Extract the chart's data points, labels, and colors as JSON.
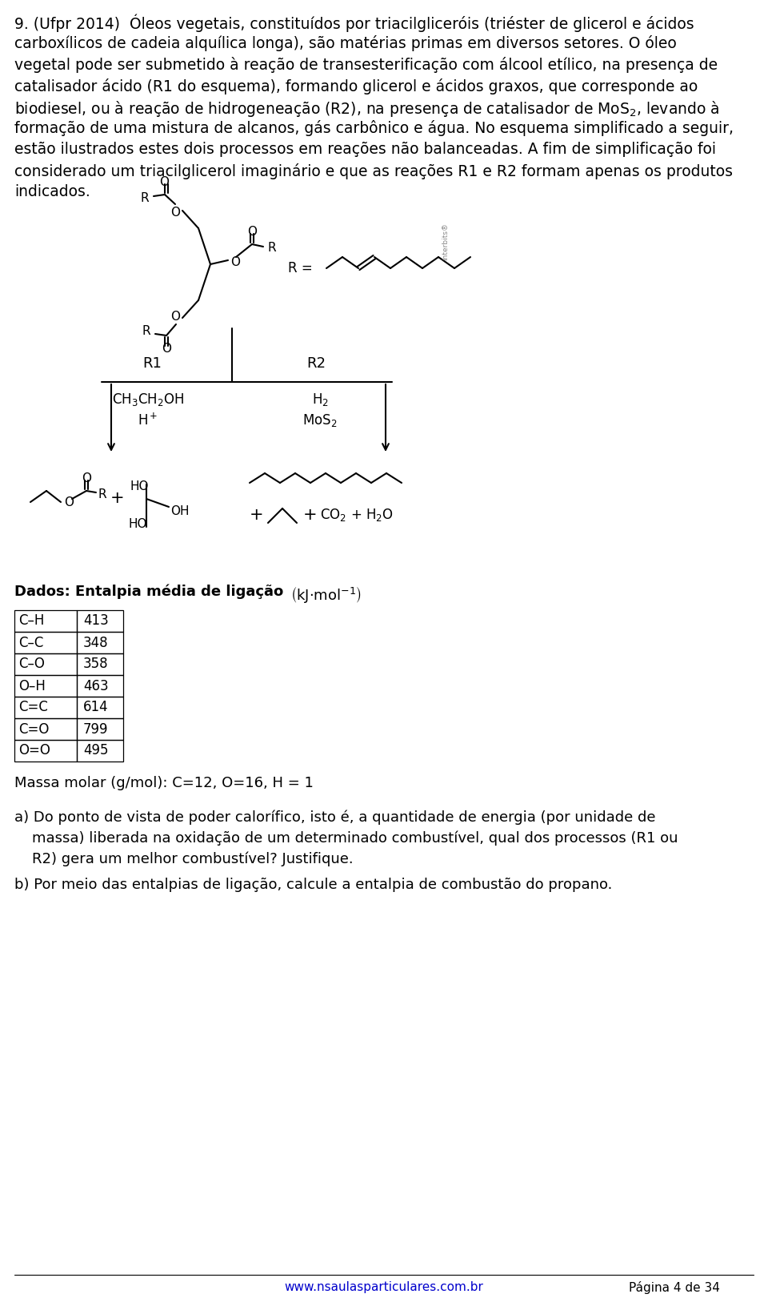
{
  "bg_color": "#ffffff",
  "text_color": "#000000",
  "page_width": 9.6,
  "page_height": 16.21,
  "paragraph_lines": [
    "9. (Ufpr 2014)  Óleos vegetais, constituídos por triacilgliceróis (triéster de glicerol e ácidos",
    "carboxílicos de cadeia alquílica longa), são matérias primas em diversos setores. O óleo",
    "vegetal pode ser submetido à reação de transesterificação com álcool etílico, na presença de",
    "catalisador ácido (R1 do esquema), formando glicerol e ácidos graxos, que corresponde ao",
    "biodiesel, ou à reação de hidrogeneação (R2), na presença de catalisador de MoS$_2$, levando à",
    "formação de uma mistura de alcanos, gás carbônico e água. No esquema simplificado a seguir,",
    "estão ilustrados estes dois processos em reações não balanceadas. A fim de simplificação foi",
    "considerado um triacilglicerol imaginário e que as reações R1 e R2 formam apenas os produtos",
    "indicados."
  ],
  "table_bonds": [
    "C–H",
    "C–C",
    "C–O",
    "O–H",
    "C=C",
    "C=O",
    "O=O"
  ],
  "table_values": [
    413,
    348,
    358,
    463,
    614,
    799,
    495
  ],
  "footer_url": "www.nsaulasparticulares.com.br",
  "footer_page": "Página 4 de 34"
}
